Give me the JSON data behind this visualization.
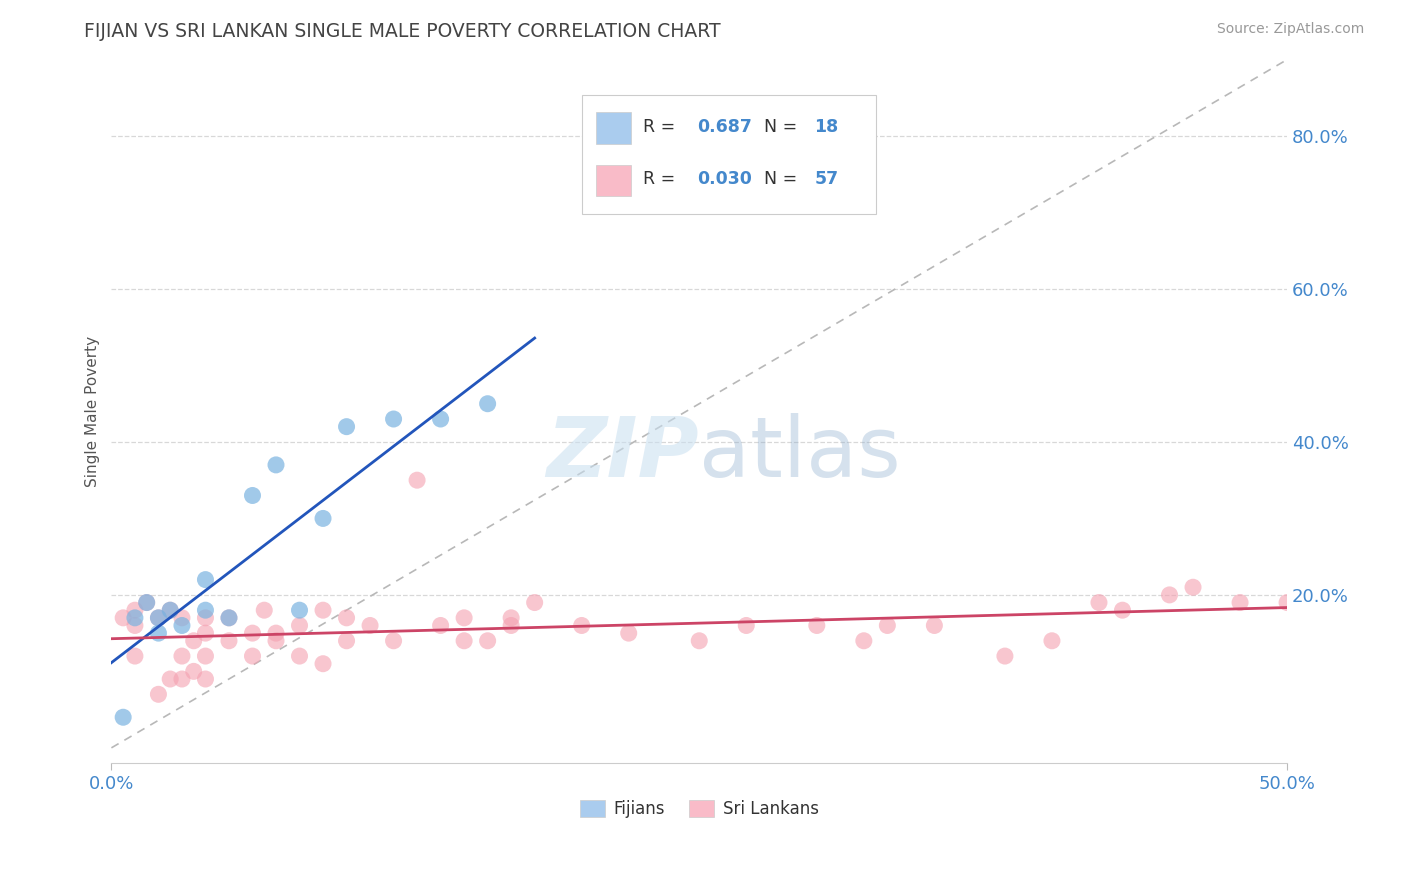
{
  "title": "FIJIAN VS SRI LANKAN SINGLE MALE POVERTY CORRELATION CHART",
  "source_text": "Source: ZipAtlas.com",
  "ylabel": "Single Male Poverty",
  "xlim": [
    0.0,
    0.5
  ],
  "ylim": [
    -0.02,
    0.9
  ],
  "fijian_color": "#7ab3e0",
  "fijian_edge_color": "#7ab3e0",
  "srilankan_color": "#f4a0b0",
  "srilankan_edge_color": "#f4a0b0",
  "fijian_line_color": "#2255bb",
  "srilankan_line_color": "#cc4466",
  "diagonal_color": "#b8b8b8",
  "legend_fijian_color": "#aaccee",
  "legend_srilankan_color": "#f9bbc8",
  "watermark_color": "#c8dff0",
  "background_color": "#ffffff",
  "grid_color": "#d8d8d8",
  "title_color": "#444444",
  "ylabel_color": "#555555",
  "tick_color": "#4488cc",
  "fijian_x": [
    0.005,
    0.01,
    0.015,
    0.02,
    0.02,
    0.025,
    0.03,
    0.04,
    0.04,
    0.05,
    0.06,
    0.07,
    0.08,
    0.09,
    0.1,
    0.12,
    0.14,
    0.16
  ],
  "fijian_y": [
    0.04,
    0.17,
    0.19,
    0.15,
    0.17,
    0.18,
    0.16,
    0.18,
    0.22,
    0.17,
    0.33,
    0.37,
    0.18,
    0.3,
    0.42,
    0.43,
    0.43,
    0.45
  ],
  "srilankan_x": [
    0.005,
    0.01,
    0.01,
    0.01,
    0.015,
    0.02,
    0.02,
    0.025,
    0.025,
    0.03,
    0.03,
    0.03,
    0.035,
    0.035,
    0.04,
    0.04,
    0.04,
    0.04,
    0.05,
    0.05,
    0.06,
    0.06,
    0.065,
    0.07,
    0.07,
    0.08,
    0.08,
    0.09,
    0.09,
    0.1,
    0.1,
    0.11,
    0.12,
    0.13,
    0.14,
    0.15,
    0.15,
    0.16,
    0.17,
    0.17,
    0.18,
    0.2,
    0.22,
    0.25,
    0.27,
    0.3,
    0.32,
    0.33,
    0.35,
    0.38,
    0.4,
    0.42,
    0.43,
    0.45,
    0.46,
    0.48,
    0.5
  ],
  "srilankan_y": [
    0.17,
    0.12,
    0.16,
    0.18,
    0.19,
    0.07,
    0.17,
    0.09,
    0.18,
    0.09,
    0.12,
    0.17,
    0.1,
    0.14,
    0.09,
    0.12,
    0.15,
    0.17,
    0.14,
    0.17,
    0.12,
    0.15,
    0.18,
    0.14,
    0.15,
    0.12,
    0.16,
    0.11,
    0.18,
    0.14,
    0.17,
    0.16,
    0.14,
    0.35,
    0.16,
    0.14,
    0.17,
    0.14,
    0.16,
    0.17,
    0.19,
    0.16,
    0.15,
    0.14,
    0.16,
    0.16,
    0.14,
    0.16,
    0.16,
    0.12,
    0.14,
    0.19,
    0.18,
    0.2,
    0.21,
    0.19,
    0.19
  ],
  "ytick_vals": [
    0.2,
    0.4,
    0.6,
    0.8
  ],
  "ytick_labels": [
    "20.0%",
    "40.0%",
    "60.0%",
    "80.0%"
  ]
}
